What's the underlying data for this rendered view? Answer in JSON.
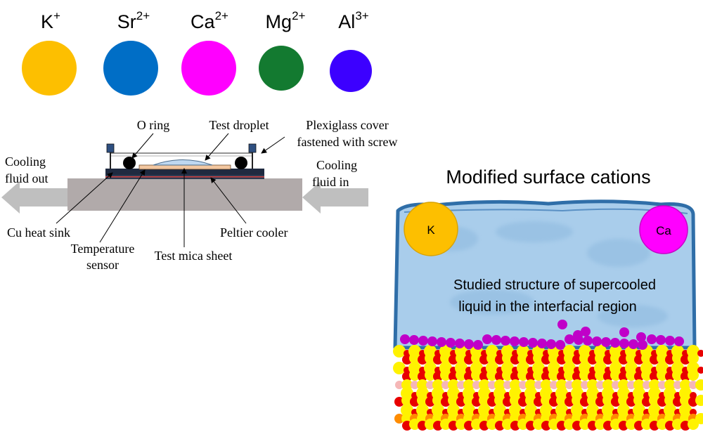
{
  "legend": [
    {
      "symbol": "K",
      "charge": "+",
      "color": "#FDBF00"
    },
    {
      "symbol": "Sr",
      "charge": "2+",
      "color": "#006EC6"
    },
    {
      "symbol": "Ca",
      "charge": "2+",
      "color": "#FF00FF"
    },
    {
      "symbol": "Mg",
      "charge": "2+",
      "color": "#137A30"
    },
    {
      "symbol": "Al",
      "charge": "3+",
      "color": "#3C00FF"
    }
  ],
  "apparatus": {
    "o_ring": "O ring",
    "test_droplet": "Test droplet",
    "plexiglass_line1": "Plexiglass cover",
    "plexiglass_line2": "fastened with screw",
    "cooling_out_line1": "Cooling",
    "cooling_out_line2": "fluid out",
    "cooling_in_line1": "Cooling",
    "cooling_in_line2": "fluid in",
    "cu_heat_sink": "Cu heat sink",
    "peltier_cooler": "Peltier cooler",
    "temperature_line1": "Temperature",
    "temperature_line2": "sensor",
    "test_mica": "Test mica sheet"
  },
  "simulation": {
    "title": "Modified surface cations",
    "cation_k": "K",
    "cation_ca": "Ca",
    "caption_line1": "Studied structure of supercooled",
    "caption_line2": "liquid in the interfacial region",
    "colors": {
      "water": "#A9CDEB",
      "water_edge": "#2F6EA8",
      "k": "#FDBF00",
      "ca": "#FF00FF",
      "surface_ion": "#C000C8",
      "oxygen": "#E80000",
      "silicon": "#FFF200",
      "aluminum": "#FF8C00",
      "hydrogen": "#F5B7B7"
    }
  }
}
